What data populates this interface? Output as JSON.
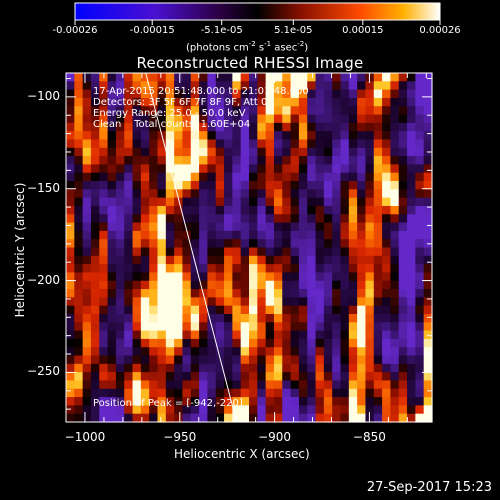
{
  "colorbar": {
    "tick_labels": [
      "-0.00026",
      "-0.00015",
      "-5.1e-05",
      "5.1e-05",
      "0.00015",
      "0.00026"
    ],
    "tick_values": [
      -0.00026,
      -0.00015,
      -5.1e-05,
      5.1e-05,
      0.00015,
      0.00026
    ],
    "range": [
      -0.00026,
      0.00026
    ],
    "units_main": "(photons cm",
    "units_sup1": "-2",
    "units_mid": " s",
    "units_sup2": "-1",
    "units_end": " asec",
    "units_sup3": "-2",
    "units_close": ")"
  },
  "chart_data": {
    "type": "heatmap",
    "title": "Reconstructed RHESSI Image",
    "xlabel": "Heliocentric X (arcsec)",
    "ylabel": "Heliocentric Y (arcsec)",
    "xlim": [
      -1010,
      -817
    ],
    "ylim": [
      -277,
      -87
    ],
    "x_ticks": [
      -1000,
      -950,
      -900,
      -850
    ],
    "x_tick_labels": [
      "−1000",
      "−950",
      "−900",
      "−850"
    ],
    "y_ticks": [
      -100,
      -150,
      -200,
      -250
    ],
    "y_tick_labels": [
      "−100",
      "−150",
      "−200",
      "−250"
    ],
    "annotations": [
      "17-Apr-2015 20:51:48.000 to 21:01:48.000",
      "Detectors: 3F 5F 6F 7F 8F 9F, Att 0",
      "Energy Range: 25.0 - 50.0 keV",
      "Clean    Total counts: 1.60E+04"
    ],
    "peak_label": "Position of Peak = [-942,-220]",
    "peak": [
      -942,
      -220
    ],
    "limb_line": [
      [
        -968,
        -87
      ],
      [
        -920,
        -277
      ]
    ],
    "colormap": "hot (blue-purple for negative)"
  },
  "footer": {
    "date": "27-Sep-2017 15:23"
  }
}
